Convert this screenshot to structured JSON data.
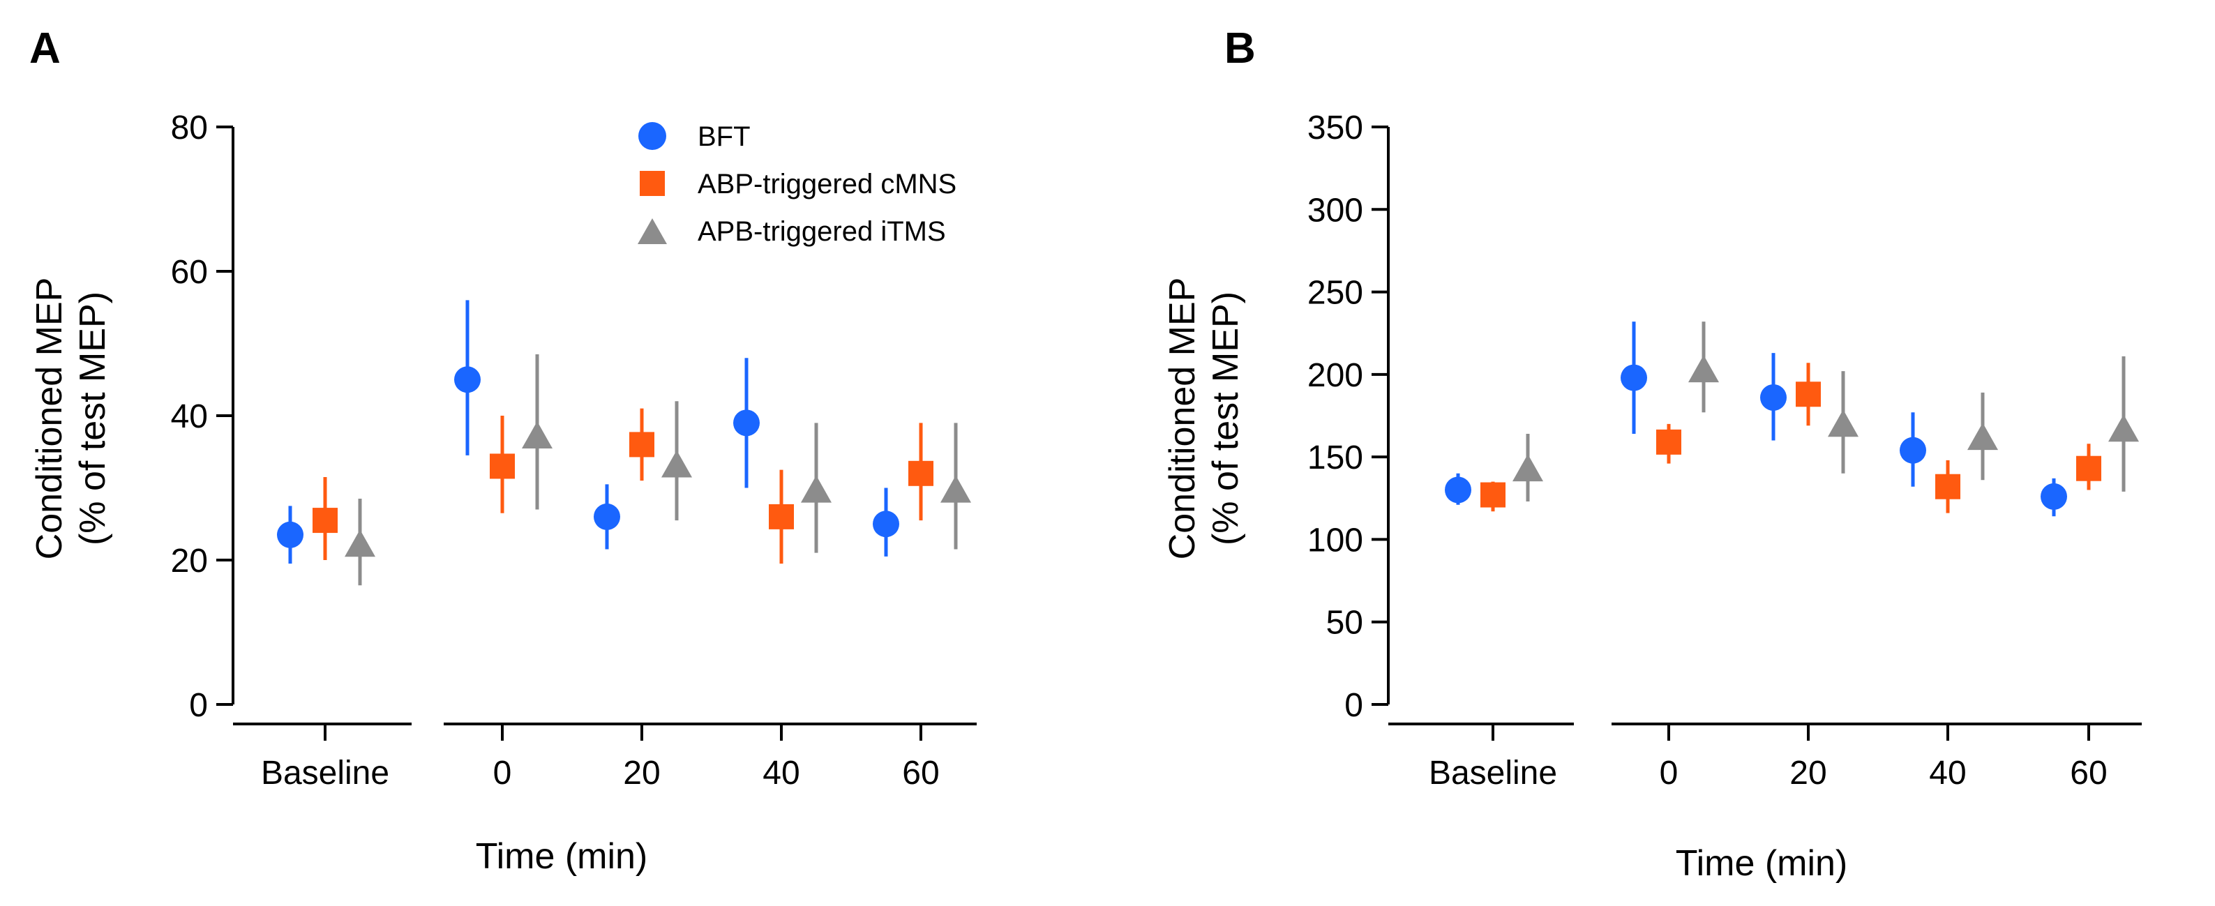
{
  "colors": {
    "BFT": "#1a66ff",
    "ABP-triggered cMNS": "#ff5a10",
    "APB-triggered iTMS": "#8c8c8c"
  },
  "legend": [
    {
      "label": "BFT",
      "marker": "circle"
    },
    {
      "label": "ABP-triggered cMNS",
      "marker": "square"
    },
    {
      "label": "APB-triggered iTMS",
      "marker": "triangle"
    }
  ],
  "chart_data": [
    {
      "type": "scatter",
      "panel": "A",
      "title": "",
      "xlabel": "Time (min)",
      "ylabel": [
        "Conditioned MEP",
        "(% of test MEP)"
      ],
      "ylim": [
        0,
        80
      ],
      "yticks": [
        0,
        20,
        40,
        60,
        80
      ],
      "categories": [
        "Baseline",
        "0",
        "20",
        "40",
        "60"
      ],
      "series": [
        {
          "name": "BFT",
          "values": [
            23.5,
            45,
            26,
            39,
            25
          ],
          "err_low": [
            19.5,
            34.5,
            21.5,
            30,
            20.5
          ],
          "err_high": [
            27.5,
            56,
            30.5,
            48,
            30
          ]
        },
        {
          "name": "ABP-triggered cMNS",
          "values": [
            25.5,
            33,
            36,
            26,
            32
          ],
          "err_low": [
            20,
            26.5,
            31,
            19.5,
            25.5
          ],
          "err_high": [
            31.5,
            40,
            41,
            32.5,
            39
          ]
        },
        {
          "name": "APB-triggered iTMS",
          "values": [
            22,
            37,
            33,
            29.5,
            29.5
          ],
          "err_low": [
            16.5,
            27,
            25.5,
            21,
            21.5
          ],
          "err_high": [
            28.5,
            48.5,
            42,
            39,
            39
          ]
        }
      ]
    },
    {
      "type": "scatter",
      "panel": "B",
      "title": "",
      "xlabel": "Time (min)",
      "ylabel": [
        "Conditioned MEP",
        "(% of test MEP)"
      ],
      "ylim": [
        0,
        350
      ],
      "yticks": [
        0,
        50,
        100,
        150,
        200,
        250,
        300,
        350
      ],
      "categories": [
        "Baseline",
        "0",
        "20",
        "40",
        "60"
      ],
      "series": [
        {
          "name": "BFT",
          "values": [
            130,
            198,
            186,
            154,
            126
          ],
          "err_low": [
            121,
            164,
            160,
            132,
            114
          ],
          "err_high": [
            140,
            232,
            213,
            177,
            137
          ]
        },
        {
          "name": "ABP-triggered cMNS",
          "values": [
            127,
            159,
            188,
            132,
            143
          ],
          "err_low": [
            117,
            146,
            169,
            116,
            130
          ],
          "err_high": [
            135,
            170,
            207,
            148,
            158
          ]
        },
        {
          "name": "APB-triggered iTMS",
          "values": [
            142,
            202,
            169,
            161,
            166
          ],
          "err_low": [
            123,
            177,
            140,
            136,
            129
          ],
          "err_high": [
            164,
            232,
            202,
            189,
            211
          ]
        }
      ]
    }
  ]
}
